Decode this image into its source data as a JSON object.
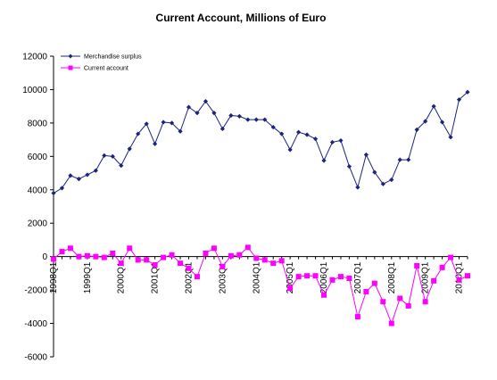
{
  "chart_data": {
    "type": "line",
    "title": "Current Account, Millions of Euro",
    "xlabel": "",
    "ylabel": "",
    "ylim": [
      -6000,
      12000
    ],
    "y_ticks": [
      12000,
      10000,
      8000,
      6000,
      4000,
      2000,
      0,
      -2000,
      -4000,
      -6000
    ],
    "grid": false,
    "legend_position": "top-left",
    "x_tick_labels": [
      {
        "index": 0,
        "label": "1998Q1"
      },
      {
        "index": 4,
        "label": "1999Q1"
      },
      {
        "index": 8,
        "label": "2000Q1"
      },
      {
        "index": 12,
        "label": "2001Q1"
      },
      {
        "index": 16,
        "label": "2002Q1"
      },
      {
        "index": 20,
        "label": "2003Q1"
      },
      {
        "index": 24,
        "label": "2004Q1"
      },
      {
        "index": 28,
        "label": "2005Q1"
      },
      {
        "index": 32,
        "label": "2006Q1"
      },
      {
        "index": 36,
        "label": "2007Q1"
      },
      {
        "index": 40,
        "label": "2008Q1"
      },
      {
        "index": 44,
        "label": "2009Q1"
      },
      {
        "index": 48,
        "label": "2010Q1"
      }
    ],
    "series": [
      {
        "name": "Merchandise surplus",
        "color": "#1a237e",
        "marker": "diamond",
        "values": [
          3800,
          4100,
          4850,
          4650,
          4900,
          5150,
          6050,
          6000,
          5450,
          6450,
          7350,
          7950,
          6750,
          8050,
          8000,
          7500,
          8950,
          8600,
          9300,
          8600,
          7650,
          8450,
          8400,
          8200,
          8200,
          8200,
          7750,
          7350,
          6400,
          7450,
          7300,
          7050,
          5750,
          6850,
          6950,
          5400,
          4150,
          6100,
          5050,
          4350,
          4600,
          5800,
          5800,
          7600,
          8100,
          9000,
          8050,
          7150,
          9400,
          9850
        ]
      },
      {
        "name": "Current account",
        "color": "#ff00ff",
        "marker": "square",
        "values": [
          -150,
          300,
          500,
          0,
          50,
          0,
          -50,
          200,
          -400,
          500,
          -200,
          -200,
          -500,
          -50,
          100,
          -400,
          -700,
          -1200,
          200,
          500,
          -600,
          50,
          100,
          550,
          -100,
          -200,
          -400,
          -250,
          -1900,
          -1200,
          -1150,
          -1150,
          -2300,
          -1400,
          -1200,
          -1300,
          -3600,
          -2100,
          -1600,
          -2700,
          -4000,
          -2500,
          -2950,
          -550,
          -2700,
          -1450,
          -650,
          -50,
          -1400,
          -1150
        ]
      }
    ]
  }
}
